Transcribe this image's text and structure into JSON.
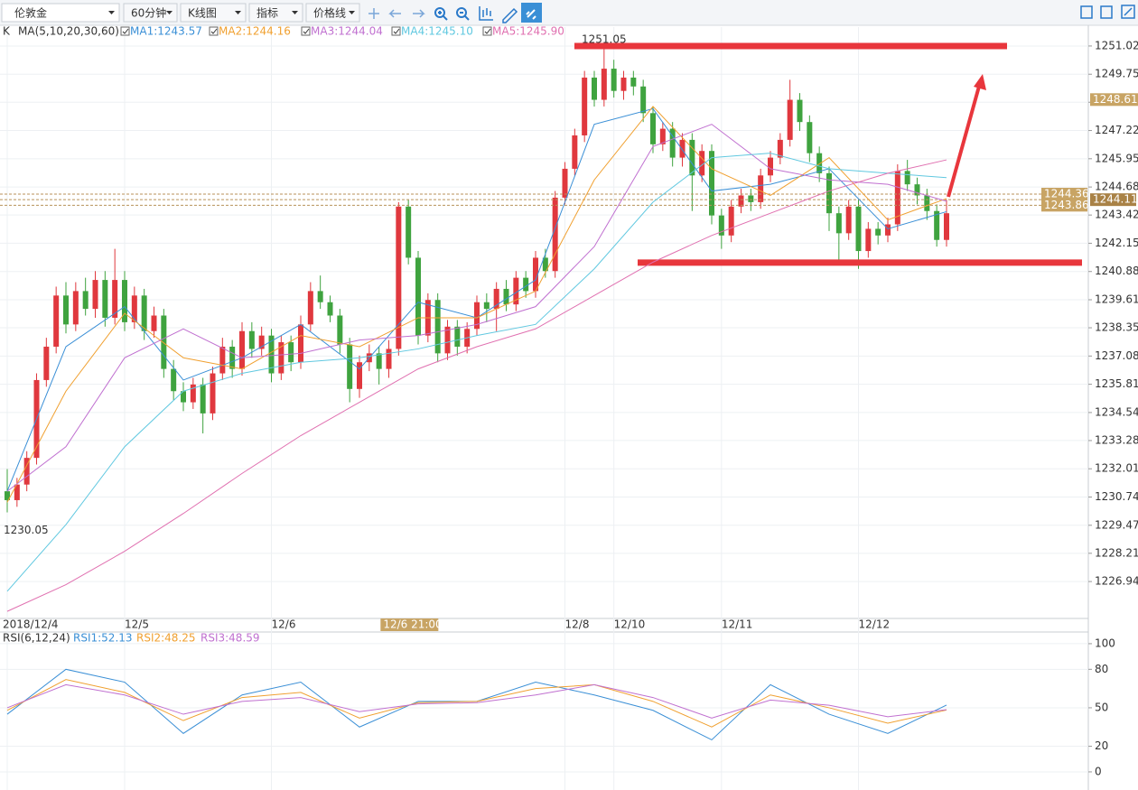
{
  "toolbar": [
    "伦敦金",
    "60分钟",
    "K线图",
    "指标",
    "价格线"
  ],
  "chart_data": [
    {
      "type": "candlestick",
      "title": "K",
      "indicator": "MA(5,10,20,30,60)",
      "up_color": "#e0383e",
      "down_color": "#3fa33f",
      "categories": [
        "2018/12/4",
        null,
        null,
        null,
        null,
        null,
        null,
        null,
        null,
        null,
        null,
        null,
        "12/5",
        null,
        null,
        null,
        null,
        null,
        null,
        null,
        null,
        null,
        null,
        null,
        null,
        null,
        null,
        "12/6",
        null,
        null,
        null,
        null,
        null,
        null,
        null,
        null,
        null,
        null,
        null,
        null,
        "12/6 21:00",
        null,
        null,
        null,
        null,
        null,
        null,
        null,
        null,
        null,
        null,
        null,
        null,
        null,
        null,
        null,
        null,
        "12/8",
        null,
        null,
        null,
        null,
        "12/10",
        null,
        null,
        null,
        null,
        null,
        null,
        null,
        null,
        null,
        null,
        "12/11",
        null,
        null,
        null,
        null,
        null,
        null,
        null,
        null,
        null,
        null,
        null,
        null,
        null,
        "12/12",
        null,
        null,
        null,
        null,
        null,
        null,
        null,
        null,
        null
      ],
      "highlight_category": 40,
      "candles": [
        [
          1231,
          1232,
          1230.05,
          1230.6
        ],
        [
          1230.6,
          1231.6,
          1230.3,
          1231.3
        ],
        [
          1231.3,
          1232.8,
          1231,
          1232.5
        ],
        [
          1232.5,
          1236.3,
          1232.2,
          1236
        ],
        [
          1236,
          1237.9,
          1235.7,
          1237.5
        ],
        [
          1237.5,
          1240.2,
          1237.2,
          1239.8
        ],
        [
          1239.8,
          1240.4,
          1238.1,
          1238.5
        ],
        [
          1238.5,
          1240.4,
          1238.2,
          1240
        ],
        [
          1240,
          1240.6,
          1238.9,
          1239.2
        ],
        [
          1239.2,
          1240.9,
          1238.8,
          1240.5
        ],
        [
          1240.5,
          1240.9,
          1238.4,
          1238.8
        ],
        [
          1238.8,
          1241.9,
          1238.5,
          1240.5
        ],
        [
          1240.5,
          1240.9,
          1238.2,
          1238.6
        ],
        [
          1238.6,
          1240.2,
          1238.3,
          1239.8
        ],
        [
          1239.8,
          1240.1,
          1237.8,
          1238.2
        ],
        [
          1238.2,
          1239.3,
          1237.9,
          1238.9
        ],
        [
          1238.9,
          1239.2,
          1236.1,
          1236.5
        ],
        [
          1236.5,
          1236.9,
          1235.1,
          1235.5
        ],
        [
          1235.5,
          1235.9,
          1234.6,
          1235
        ],
        [
          1235,
          1236.1,
          1234.7,
          1235.8
        ],
        [
          1235.8,
          1236.1,
          1233.6,
          1234.5
        ],
        [
          1234.5,
          1236.6,
          1234.2,
          1236.3
        ],
        [
          1236.3,
          1237.9,
          1236,
          1237.5
        ],
        [
          1237.5,
          1237.8,
          1236.1,
          1236.5
        ],
        [
          1236.5,
          1238.6,
          1236.2,
          1238.2
        ],
        [
          1238.2,
          1238.6,
          1237,
          1237.4
        ],
        [
          1237.4,
          1238.4,
          1237.1,
          1238
        ],
        [
          1238,
          1238.3,
          1235.9,
          1236.3
        ],
        [
          1236.3,
          1238,
          1236,
          1237.7
        ],
        [
          1237.7,
          1238,
          1236.4,
          1236.8
        ],
        [
          1236.8,
          1238.9,
          1236.5,
          1238.5
        ],
        [
          1238.5,
          1240.4,
          1238.2,
          1240
        ],
        [
          1240,
          1240.7,
          1239.2,
          1239.5
        ],
        [
          1239.5,
          1239.8,
          1238.6,
          1238.9
        ],
        [
          1238.9,
          1239.2,
          1237.2,
          1237.6
        ],
        [
          1237.6,
          1237.9,
          1235,
          1235.6
        ],
        [
          1235.6,
          1237.1,
          1235.2,
          1236.8
        ],
        [
          1236.8,
          1237.6,
          1236.4,
          1237.2
        ],
        [
          1237.2,
          1237.5,
          1235.8,
          1236.5
        ],
        [
          1236.5,
          1237.8,
          1236.1,
          1237.4
        ],
        [
          1237.4,
          1244,
          1237.1,
          1243.8
        ],
        [
          1243.8,
          1244.1,
          1241.2,
          1241.5
        ],
        [
          1241.5,
          1241.8,
          1237.6,
          1238
        ],
        [
          1238,
          1239.9,
          1237.7,
          1239.6
        ],
        [
          1239.6,
          1239.9,
          1236.8,
          1237.2
        ],
        [
          1237.2,
          1238.7,
          1236.9,
          1238.4
        ],
        [
          1238.4,
          1238.7,
          1237.1,
          1237.5
        ],
        [
          1237.5,
          1238.6,
          1237.2,
          1238.3
        ],
        [
          1238.3,
          1239.8,
          1238,
          1239.5
        ],
        [
          1239.5,
          1239.9,
          1238.6,
          1239.2
        ],
        [
          1239.2,
          1240.4,
          1238.2,
          1240.1
        ],
        [
          1240.1,
          1240.5,
          1239.1,
          1239.4
        ],
        [
          1239.4,
          1240.9,
          1239.1,
          1240.6
        ],
        [
          1240.6,
          1240.9,
          1239.7,
          1240
        ],
        [
          1240,
          1241.8,
          1239.7,
          1241.5
        ],
        [
          1241.5,
          1241.9,
          1240.6,
          1240.9
        ],
        [
          1240.9,
          1244.5,
          1240.6,
          1244.2
        ],
        [
          1244.2,
          1245.8,
          1243.9,
          1245.5
        ],
        [
          1245.5,
          1247.3,
          1245.2,
          1247
        ],
        [
          1247,
          1249.9,
          1246.7,
          1249.6
        ],
        [
          1249.6,
          1249.9,
          1248.3,
          1248.6
        ],
        [
          1248.6,
          1251.05,
          1248.3,
          1250
        ],
        [
          1250,
          1250.4,
          1248.7,
          1249
        ],
        [
          1249,
          1249.9,
          1248.6,
          1249.6
        ],
        [
          1249.6,
          1249.9,
          1248.8,
          1249.2
        ],
        [
          1249.2,
          1249.5,
          1247.6,
          1248
        ],
        [
          1248,
          1248.3,
          1246.2,
          1246.6
        ],
        [
          1246.6,
          1247.6,
          1246.3,
          1247.3
        ],
        [
          1247.3,
          1247.6,
          1245.6,
          1246
        ],
        [
          1246,
          1247.1,
          1245.6,
          1246.8
        ],
        [
          1246.8,
          1247.1,
          1243.6,
          1245.2
        ],
        [
          1245.2,
          1246.6,
          1244.9,
          1246.3
        ],
        [
          1246.3,
          1246.6,
          1243,
          1243.4
        ],
        [
          1243.4,
          1243.7,
          1241.9,
          1242.5
        ],
        [
          1242.5,
          1244.1,
          1242.2,
          1243.8
        ],
        [
          1243.8,
          1244.6,
          1243.5,
          1244.3
        ],
        [
          1244.3,
          1244.6,
          1243.6,
          1244
        ],
        [
          1244,
          1245.5,
          1243.7,
          1245.2
        ],
        [
          1245.2,
          1246.3,
          1244.9,
          1246
        ],
        [
          1246,
          1247.1,
          1245.7,
          1246.8
        ],
        [
          1246.8,
          1249.5,
          1246.5,
          1248.6
        ],
        [
          1248.6,
          1248.9,
          1247.2,
          1247.6
        ],
        [
          1247.6,
          1247.9,
          1245.8,
          1246.2
        ],
        [
          1246.2,
          1246.5,
          1244.9,
          1245.3
        ],
        [
          1245.3,
          1245.6,
          1242.7,
          1243.5
        ],
        [
          1243.5,
          1243.8,
          1241.2,
          1242.6
        ],
        [
          1242.6,
          1244.1,
          1242.3,
          1243.8
        ],
        [
          1243.8,
          1244.1,
          1241,
          1241.8
        ],
        [
          1241.8,
          1243.1,
          1241.5,
          1242.8
        ],
        [
          1242.8,
          1243.1,
          1242.1,
          1242.5
        ],
        [
          1242.5,
          1243.3,
          1242.2,
          1243
        ],
        [
          1243,
          1245.7,
          1242.7,
          1245.4
        ],
        [
          1245.4,
          1245.9,
          1244.5,
          1244.8
        ],
        [
          1244.8,
          1245.1,
          1243.9,
          1244.3
        ],
        [
          1244.3,
          1244.6,
          1243.2,
          1243.6
        ],
        [
          1243.6,
          1243.9,
          1242,
          1242.3
        ],
        [
          1242.3,
          1244.1,
          1242,
          1243.5
        ]
      ],
      "x": [
        0,
        6,
        12,
        18,
        24,
        30,
        36,
        42,
        48,
        54,
        60,
        66,
        72,
        78,
        84,
        90,
        96
      ],
      "series": [
        {
          "name": "MA1:1243.57",
          "color": "#3a8fd6",
          "values": [
            1231,
            1237.5,
            1239.3,
            1236,
            1237,
            1238.5,
            1236.5,
            1239.5,
            1238.8,
            1240.5,
            1247.5,
            1248.2,
            1244.5,
            1244.8,
            1245.5,
            1242.8,
            1243.57
          ]
        },
        {
          "name": "MA2:1244.16",
          "color": "#f0a030",
          "values": [
            1230.5,
            1235.5,
            1239,
            1237,
            1236.5,
            1238,
            1237.5,
            1238.8,
            1238.8,
            1240,
            1245,
            1248.3,
            1245.5,
            1244.3,
            1246,
            1243.2,
            1244.16
          ]
        },
        {
          "name": "MA3:1244.04",
          "color": "#c070d0",
          "values": [
            1231,
            1233,
            1237,
            1238.3,
            1237,
            1237.2,
            1237.8,
            1238,
            1238.5,
            1239.3,
            1242,
            1246.5,
            1247.5,
            1245.5,
            1245,
            1244.8,
            1244.04
          ]
        },
        {
          "name": "MA4:1245.10",
          "color": "#60c8e0",
          "values": [
            1226.5,
            1229.5,
            1233,
            1235.5,
            1236.3,
            1236.8,
            1237,
            1237.4,
            1238,
            1238.5,
            1241,
            1244,
            1246,
            1246.2,
            1245.5,
            1245.3,
            1245.1
          ]
        },
        {
          "name": "MA5:1245.90",
          "color": "#e070b0",
          "values": [
            1225.6,
            1226.8,
            1228.3,
            1230,
            1231.8,
            1233.5,
            1235,
            1236.5,
            1237.5,
            1238.3,
            1239.8,
            1241.3,
            1242.5,
            1243.5,
            1244.5,
            1245.3,
            1245.9
          ]
        }
      ],
      "ylim": [
        1225.28,
        1251.87
      ],
      "yticks": [
        1251.02,
        1249.75,
        1248.49,
        1247.22,
        1245.95,
        1244.68,
        1243.42,
        1242.15,
        1240.88,
        1239.61,
        1238.35,
        1237.08,
        1235.81,
        1234.54,
        1233.28,
        1232.01,
        1230.74,
        1229.47,
        1228.21,
        1226.94
      ],
      "price_tags": [
        1248.61
      ],
      "last_price": 1244.11,
      "reference_lines": [
        1244.36,
        1243.86
      ],
      "drawn_lines": [
        1251.02,
        1241.28
      ],
      "grid": true
    },
    {
      "type": "line",
      "title": "RSI(6,12,24)",
      "x": [
        0,
        6,
        12,
        18,
        24,
        30,
        36,
        42,
        48,
        54,
        60,
        66,
        72,
        78,
        84,
        90,
        96
      ],
      "series": [
        {
          "name": "RSI1:52.13",
          "color": "#3a8fd6",
          "values": [
            45,
            80,
            70,
            30,
            60,
            70,
            35,
            55,
            55,
            70,
            60,
            48,
            25,
            68,
            45,
            30,
            52.13
          ]
        },
        {
          "name": "RSI2:48.25",
          "color": "#f0a030",
          "values": [
            48,
            72,
            62,
            40,
            58,
            62,
            42,
            54,
            55,
            65,
            68,
            55,
            35,
            60,
            50,
            38,
            48.25
          ]
        },
        {
          "name": "RSI3:48.59",
          "color": "#c070d0",
          "values": [
            50,
            68,
            60,
            45,
            55,
            58,
            47,
            53,
            54,
            60,
            68,
            58,
            42,
            56,
            52,
            43,
            48.59
          ]
        }
      ],
      "ylim": [
        -10.6,
        107.7
      ],
      "yticks": [
        0,
        20,
        50,
        80,
        100
      ],
      "grid": true
    }
  ]
}
